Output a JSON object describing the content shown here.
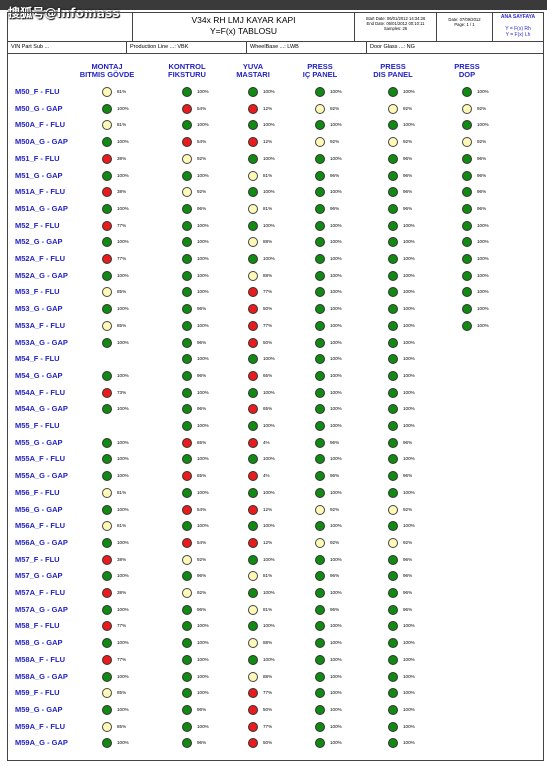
{
  "watermark": "搜狐号@Infomass",
  "header": {
    "title_line1": "V34x RH LMJ KAYAR KAPI",
    "title_line2": "Y=F(x) TABLOSU",
    "stat_line1": "Start Date: 06/01/2012 14:34:26",
    "stat_line2": "End Date: 06/01/2012 00:10:11",
    "stat_line3": "Samples: 26",
    "date_line1": "Date: 07/09/2012",
    "date_line2": "Page: 1 / 1",
    "ana_title": "ANA SAYFAYA",
    "fx_line1": "Y = F(x) Rh",
    "fx_line2": "Y = F(x) Lh"
  },
  "info": {
    "vin": "VIN Part Sub ...",
    "production_line": "Production Line ...: VBK",
    "wheelbase": "WheelBase ...: LWB",
    "door_glass": "Door Glass ...: NG"
  },
  "columns": [
    {
      "line1": "MONTAJ",
      "line2": "BITMIS GÖVDE"
    },
    {
      "line1": "KONTROL",
      "line2": "FIKSTURU"
    },
    {
      "line1": "YUVA",
      "line2": "MASTARI"
    },
    {
      "line1": "PRESS",
      "line2": "IÇ PANEL"
    },
    {
      "line1": "PRESS",
      "line2": "DIS PANEL"
    },
    {
      "line1": "PRESS",
      "line2": "DOP"
    }
  ],
  "rows": [
    {
      "label": "M50_F - FLU",
      "cells": [
        [
          "yellow",
          "81%"
        ],
        [
          "green",
          "100%"
        ],
        [
          "green",
          "100%"
        ],
        [
          "green",
          "100%"
        ],
        [
          "green",
          "100%"
        ],
        [
          "green",
          "100%"
        ]
      ]
    },
    {
      "label": "M50_G - GAP",
      "cells": [
        [
          "green",
          "100%"
        ],
        [
          "red",
          "54%"
        ],
        [
          "red",
          "12%"
        ],
        [
          "yellow",
          "92%"
        ],
        [
          "yellow",
          "92%"
        ],
        [
          "yellow",
          "92%"
        ]
      ]
    },
    {
      "label": "M50A_F - FLU",
      "cells": [
        [
          "yellow",
          "81%"
        ],
        [
          "green",
          "100%"
        ],
        [
          "green",
          "100%"
        ],
        [
          "green",
          "100%"
        ],
        [
          "green",
          "100%"
        ],
        [
          "green",
          "100%"
        ]
      ]
    },
    {
      "label": "M50A_G - GAP",
      "cells": [
        [
          "green",
          "100%"
        ],
        [
          "red",
          "54%"
        ],
        [
          "red",
          "12%"
        ],
        [
          "yellow",
          "92%"
        ],
        [
          "yellow",
          "92%"
        ],
        [
          "yellow",
          "92%"
        ]
      ]
    },
    {
      "label": "M51_F - FLU",
      "cells": [
        [
          "red",
          "38%"
        ],
        [
          "yellow",
          "92%"
        ],
        [
          "green",
          "100%"
        ],
        [
          "green",
          "100%"
        ],
        [
          "green",
          "96%"
        ],
        [
          "green",
          "96%"
        ]
      ]
    },
    {
      "label": "M51_G - GAP",
      "cells": [
        [
          "green",
          "100%"
        ],
        [
          "green",
          "100%"
        ],
        [
          "yellow",
          "81%"
        ],
        [
          "green",
          "96%"
        ],
        [
          "green",
          "96%"
        ],
        [
          "green",
          "96%"
        ]
      ]
    },
    {
      "label": "M51A_F - FLU",
      "cells": [
        [
          "red",
          "38%"
        ],
        [
          "yellow",
          "92%"
        ],
        [
          "green",
          "100%"
        ],
        [
          "green",
          "100%"
        ],
        [
          "green",
          "96%"
        ],
        [
          "green",
          "96%"
        ]
      ]
    },
    {
      "label": "M51A_G - GAP",
      "cells": [
        [
          "green",
          "100%"
        ],
        [
          "green",
          "96%"
        ],
        [
          "yellow",
          "81%"
        ],
        [
          "green",
          "96%"
        ],
        [
          "green",
          "96%"
        ],
        [
          "green",
          "96%"
        ]
      ]
    },
    {
      "label": "M52_F - FLU",
      "cells": [
        [
          "red",
          "77%"
        ],
        [
          "green",
          "100%"
        ],
        [
          "green",
          "100%"
        ],
        [
          "green",
          "100%"
        ],
        [
          "green",
          "100%"
        ],
        [
          "green",
          "100%"
        ]
      ]
    },
    {
      "label": "M52_G - GAP",
      "cells": [
        [
          "green",
          "100%"
        ],
        [
          "green",
          "100%"
        ],
        [
          "yellow",
          "88%"
        ],
        [
          "green",
          "100%"
        ],
        [
          "green",
          "100%"
        ],
        [
          "green",
          "100%"
        ]
      ]
    },
    {
      "label": "M52A_F - FLU",
      "cells": [
        [
          "red",
          "77%"
        ],
        [
          "green",
          "100%"
        ],
        [
          "green",
          "100%"
        ],
        [
          "green",
          "100%"
        ],
        [
          "green",
          "100%"
        ],
        [
          "green",
          "100%"
        ]
      ]
    },
    {
      "label": "M52A_G - GAP",
      "cells": [
        [
          "green",
          "100%"
        ],
        [
          "green",
          "100%"
        ],
        [
          "yellow",
          "88%"
        ],
        [
          "green",
          "100%"
        ],
        [
          "green",
          "100%"
        ],
        [
          "green",
          "100%"
        ]
      ]
    },
    {
      "label": "M53_F - FLU",
      "cells": [
        [
          "yellow",
          "85%"
        ],
        [
          "green",
          "100%"
        ],
        [
          "red",
          "77%"
        ],
        [
          "green",
          "100%"
        ],
        [
          "green",
          "100%"
        ],
        [
          "green",
          "100%"
        ]
      ]
    },
    {
      "label": "M53_G - GAP",
      "cells": [
        [
          "green",
          "100%"
        ],
        [
          "green",
          "96%"
        ],
        [
          "red",
          "50%"
        ],
        [
          "green",
          "100%"
        ],
        [
          "green",
          "100%"
        ],
        [
          "green",
          "100%"
        ]
      ]
    },
    {
      "label": "M53A_F - FLU",
      "cells": [
        [
          "yellow",
          "85%"
        ],
        [
          "green",
          "100%"
        ],
        [
          "red",
          "77%"
        ],
        [
          "green",
          "100%"
        ],
        [
          "green",
          "100%"
        ],
        [
          "green",
          "100%"
        ]
      ]
    },
    {
      "label": "M53A_G - GAP",
      "cells": [
        [
          "green",
          "100%"
        ],
        [
          "green",
          "96%"
        ],
        [
          "red",
          "50%"
        ],
        [
          "green",
          "100%"
        ],
        [
          "green",
          "100%"
        ],
        null
      ]
    },
    {
      "label": "M54_F - FLU",
      "cells": [
        null,
        [
          "green",
          "100%"
        ],
        [
          "green",
          "100%"
        ],
        [
          "green",
          "100%"
        ],
        [
          "green",
          "100%"
        ],
        null
      ]
    },
    {
      "label": "M54_G - GAP",
      "cells": [
        [
          "green",
          "100%"
        ],
        [
          "green",
          "96%"
        ],
        [
          "red",
          "65%"
        ],
        [
          "green",
          "100%"
        ],
        [
          "green",
          "100%"
        ],
        null
      ]
    },
    {
      "label": "M54A_F - FLU",
      "cells": [
        [
          "red",
          "73%"
        ],
        [
          "green",
          "100%"
        ],
        [
          "green",
          "100%"
        ],
        [
          "green",
          "100%"
        ],
        [
          "green",
          "100%"
        ],
        null
      ]
    },
    {
      "label": "M54A_G - GAP",
      "cells": [
        [
          "green",
          "100%"
        ],
        [
          "green",
          "96%"
        ],
        [
          "red",
          "65%"
        ],
        [
          "green",
          "100%"
        ],
        [
          "green",
          "100%"
        ],
        null
      ]
    },
    {
      "label": "M55_F - FLU",
      "cells": [
        null,
        [
          "green",
          "100%"
        ],
        [
          "green",
          "100%"
        ],
        [
          "green",
          "100%"
        ],
        [
          "green",
          "100%"
        ],
        null
      ]
    },
    {
      "label": "M55_G - GAP",
      "cells": [
        [
          "green",
          "100%"
        ],
        [
          "red",
          "65%"
        ],
        [
          "red",
          "4%"
        ],
        [
          "green",
          "96%"
        ],
        [
          "green",
          "96%"
        ],
        null
      ]
    },
    {
      "label": "M55A_F - FLU",
      "cells": [
        [
          "green",
          "100%"
        ],
        [
          "green",
          "100%"
        ],
        [
          "green",
          "100%"
        ],
        [
          "green",
          "100%"
        ],
        [
          "green",
          "100%"
        ],
        null
      ]
    },
    {
      "label": "M55A_G - GAP",
      "cells": [
        [
          "green",
          "100%"
        ],
        [
          "red",
          "65%"
        ],
        [
          "red",
          "4%"
        ],
        [
          "green",
          "96%"
        ],
        [
          "green",
          "96%"
        ],
        null
      ]
    },
    {
      "label": "M56_F - FLU",
      "cells": [
        [
          "yellow",
          "81%"
        ],
        [
          "green",
          "100%"
        ],
        [
          "green",
          "100%"
        ],
        [
          "green",
          "100%"
        ],
        [
          "green",
          "100%"
        ],
        null
      ]
    },
    {
      "label": "M56_G - GAP",
      "cells": [
        [
          "green",
          "100%"
        ],
        [
          "red",
          "54%"
        ],
        [
          "red",
          "12%"
        ],
        [
          "yellow",
          "92%"
        ],
        [
          "yellow",
          "92%"
        ],
        null
      ]
    },
    {
      "label": "M56A_F - FLU",
      "cells": [
        [
          "yellow",
          "81%"
        ],
        [
          "green",
          "100%"
        ],
        [
          "green",
          "100%"
        ],
        [
          "green",
          "100%"
        ],
        [
          "green",
          "100%"
        ],
        null
      ]
    },
    {
      "label": "M56A_G - GAP",
      "cells": [
        [
          "green",
          "100%"
        ],
        [
          "red",
          "54%"
        ],
        [
          "red",
          "12%"
        ],
        [
          "yellow",
          "92%"
        ],
        [
          "yellow",
          "92%"
        ],
        null
      ]
    },
    {
      "label": "M57_F - FLU",
      "cells": [
        [
          "red",
          "38%"
        ],
        [
          "yellow",
          "92%"
        ],
        [
          "green",
          "100%"
        ],
        [
          "green",
          "100%"
        ],
        [
          "green",
          "96%"
        ],
        null
      ]
    },
    {
      "label": "M57_G - GAP",
      "cells": [
        [
          "green",
          "100%"
        ],
        [
          "green",
          "96%"
        ],
        [
          "yellow",
          "81%"
        ],
        [
          "green",
          "96%"
        ],
        [
          "green",
          "96%"
        ],
        null
      ]
    },
    {
      "label": "M57A_F - FLU",
      "cells": [
        [
          "red",
          "38%"
        ],
        [
          "yellow",
          "92%"
        ],
        [
          "green",
          "100%"
        ],
        [
          "green",
          "100%"
        ],
        [
          "green",
          "96%"
        ],
        null
      ]
    },
    {
      "label": "M57A_G - GAP",
      "cells": [
        [
          "green",
          "100%"
        ],
        [
          "green",
          "96%"
        ],
        [
          "yellow",
          "81%"
        ],
        [
          "green",
          "96%"
        ],
        [
          "green",
          "96%"
        ],
        null
      ]
    },
    {
      "label": "M58_F - FLU",
      "cells": [
        [
          "red",
          "77%"
        ],
        [
          "green",
          "100%"
        ],
        [
          "green",
          "100%"
        ],
        [
          "green",
          "100%"
        ],
        [
          "green",
          "100%"
        ],
        null
      ]
    },
    {
      "label": "M58_G - GAP",
      "cells": [
        [
          "green",
          "100%"
        ],
        [
          "green",
          "100%"
        ],
        [
          "yellow",
          "88%"
        ],
        [
          "green",
          "100%"
        ],
        [
          "green",
          "100%"
        ],
        null
      ]
    },
    {
      "label": "M58A_F - FLU",
      "cells": [
        [
          "red",
          "77%"
        ],
        [
          "green",
          "100%"
        ],
        [
          "green",
          "100%"
        ],
        [
          "green",
          "100%"
        ],
        [
          "green",
          "100%"
        ],
        null
      ]
    },
    {
      "label": "M58A_G - GAP",
      "cells": [
        [
          "green",
          "100%"
        ],
        [
          "green",
          "100%"
        ],
        [
          "yellow",
          "88%"
        ],
        [
          "green",
          "100%"
        ],
        [
          "green",
          "100%"
        ],
        null
      ]
    },
    {
      "label": "M59_F - FLU",
      "cells": [
        [
          "yellow",
          "85%"
        ],
        [
          "green",
          "100%"
        ],
        [
          "red",
          "77%"
        ],
        [
          "green",
          "100%"
        ],
        [
          "green",
          "100%"
        ],
        null
      ]
    },
    {
      "label": "M59_G - GAP",
      "cells": [
        [
          "green",
          "100%"
        ],
        [
          "green",
          "96%"
        ],
        [
          "red",
          "50%"
        ],
        [
          "green",
          "100%"
        ],
        [
          "green",
          "100%"
        ],
        null
      ]
    },
    {
      "label": "M59A_F - FLU",
      "cells": [
        [
          "yellow",
          "85%"
        ],
        [
          "green",
          "100%"
        ],
        [
          "red",
          "77%"
        ],
        [
          "green",
          "100%"
        ],
        [
          "green",
          "100%"
        ],
        null
      ]
    },
    {
      "label": "M59A_G - GAP",
      "cells": [
        [
          "green",
          "100%"
        ],
        [
          "green",
          "96%"
        ],
        [
          "red",
          "50%"
        ],
        [
          "green",
          "100%"
        ],
        [
          "green",
          "100%"
        ],
        null
      ]
    }
  ]
}
